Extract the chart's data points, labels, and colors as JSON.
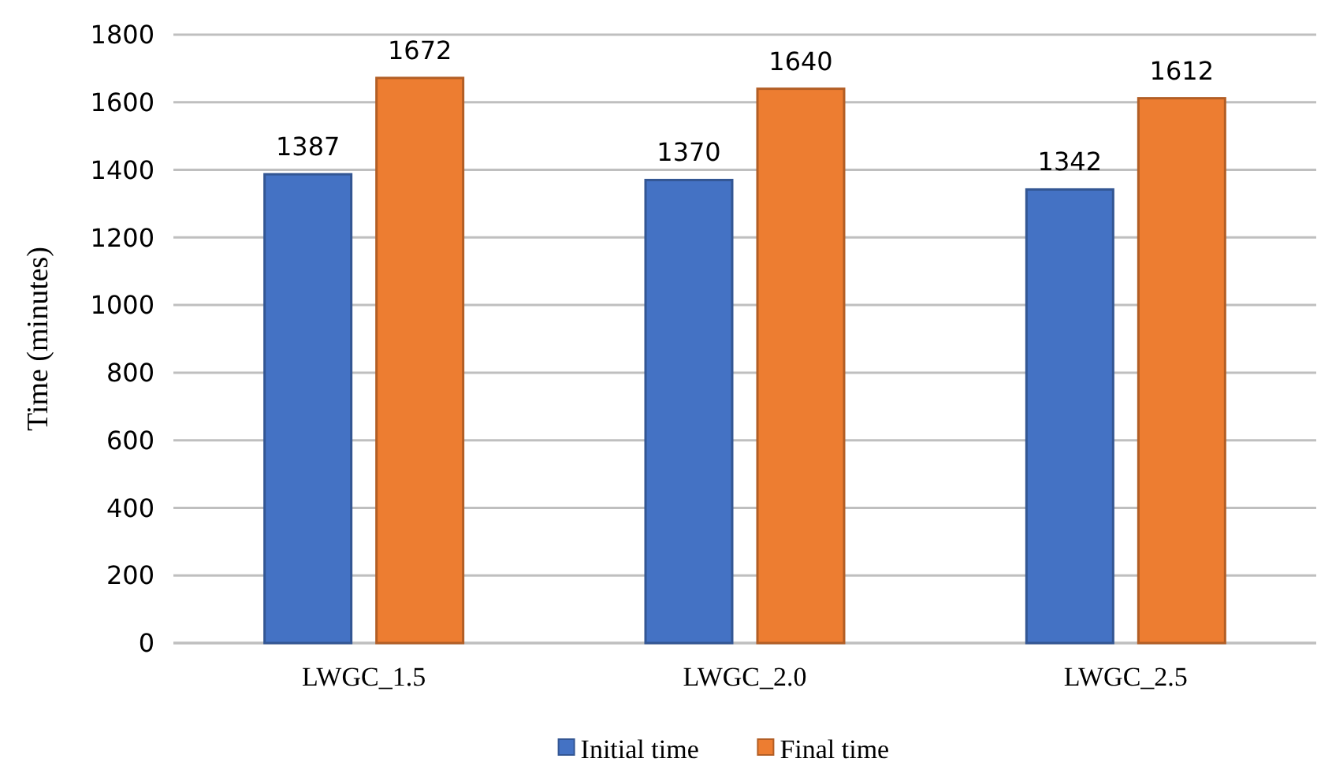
{
  "chart_data": {
    "type": "bar",
    "ylabel": "Time (minutes)",
    "categories": [
      "LWGC_1.5",
      "LWGC_2.0",
      "LWGC_2.5"
    ],
    "series": [
      {
        "name": "Initial time",
        "color": "#4472c4",
        "values": [
          1387,
          1370,
          1342
        ]
      },
      {
        "name": "Final time",
        "color": "#ed7d31",
        "values": [
          1672,
          1640,
          1612
        ]
      }
    ],
    "ylim": [
      0,
      1800
    ],
    "yticks": [
      0,
      200,
      400,
      600,
      800,
      1000,
      1200,
      1400,
      1600,
      1800
    ],
    "grid": "y",
    "legend": "bottom",
    "data_labels": true
  }
}
